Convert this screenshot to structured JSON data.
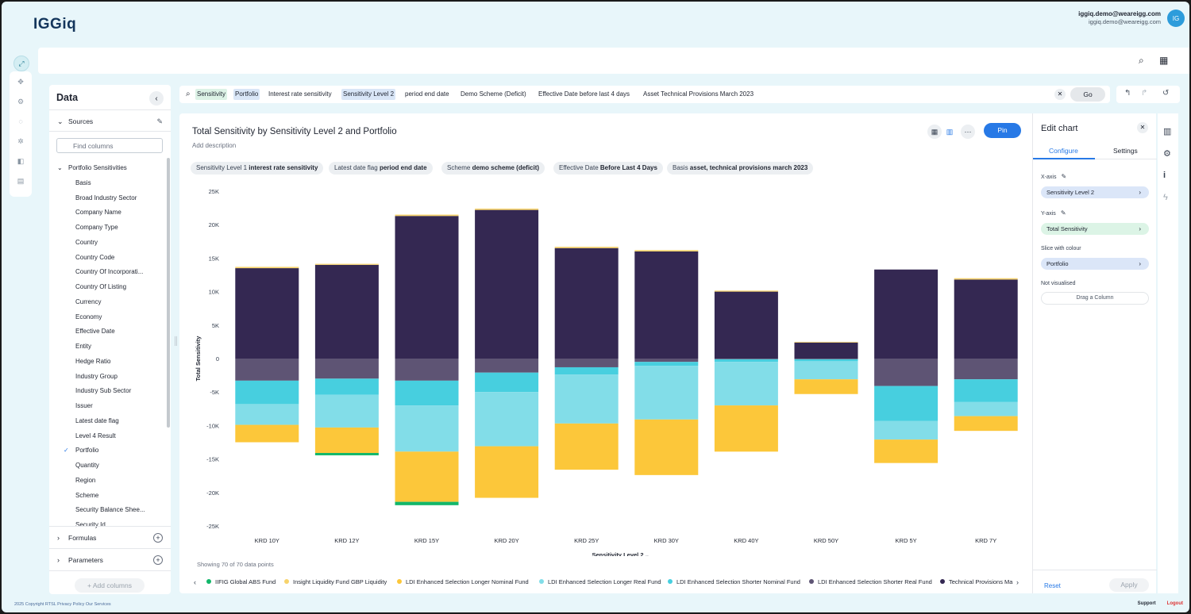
{
  "header": {
    "logo_a": "IGG",
    "logo_b": "iq",
    "user_email": "iggiq.demo@weareigg.com",
    "user_email_sub": "iggiq.demo@weareigg.com",
    "avatar": "IG"
  },
  "data_panel": {
    "title": "Data",
    "collapse": "‹",
    "sources_label": "Sources",
    "search_placeholder": "Find columns",
    "group_label": "Portfolio Sensitivities",
    "items": [
      "Basis",
      "Broad Industry Sector",
      "Company Name",
      "Company Type",
      "Country",
      "Country Code",
      "Country Of Incorporati...",
      "Country Of Listing",
      "Currency",
      "Economy",
      "Effective Date",
      "Entity",
      "Hedge Ratio",
      "Industry Group",
      "Industry Sub Sector",
      "Issuer",
      "Latest date flag",
      "Level 4 Result",
      "Portfolio",
      "Quantity",
      "Region",
      "Scheme",
      "Security Balance Shee...",
      "Security Id"
    ],
    "checked_item": "Portfolio",
    "formulas_label": "Formulas",
    "parameters_label": "Parameters",
    "add_columns": "+ Add columns"
  },
  "query": {
    "tokens": [
      {
        "text": "Sensitivity",
        "style": "green"
      },
      {
        "text": "Portfolio",
        "style": "blue"
      },
      {
        "text": "Interest rate sensitivity",
        "style": "plain"
      },
      {
        "text": "Sensitivity Level 2",
        "style": "blue"
      },
      {
        "text": "period end date",
        "style": "plain"
      },
      {
        "text": "Demo Scheme (Deficit)",
        "style": "plain"
      },
      {
        "text": "Effective Date before last 4 days",
        "style": "plain"
      },
      {
        "text": "Asset Technical Provisions March 2023",
        "style": "plain"
      }
    ],
    "go_label": "Go"
  },
  "chart_card": {
    "title": "Total Sensitivity by Sensitivity Level 2 and Portfolio",
    "description": "Add description",
    "pin_label": "Pin",
    "chips": [
      {
        "key": "Sensitivity Level 1",
        "value": "interest rate sensitivity"
      },
      {
        "key": "Latest date flag",
        "value": "period end date"
      },
      {
        "key": "Scheme",
        "value": "demo scheme (deficit)"
      },
      {
        "key": "Effective Date",
        "value": "Before Last 4 Days"
      },
      {
        "key": "Basis",
        "value": "asset, technical provisions march 2023"
      }
    ],
    "showing": "Showing 70 of 70 data points",
    "legend_arrow_left": "‹",
    "legend_arrow_right": "›"
  },
  "chart_data": {
    "type": "bar",
    "stacked": true,
    "xlabel": "Sensitivity Level 2",
    "ylabel": "Total Sensitivity",
    "ylim": [
      -25000,
      25000
    ],
    "yticks": [
      25000,
      20000,
      15000,
      10000,
      5000,
      0,
      -5000,
      -10000,
      -15000,
      -20000,
      -25000
    ],
    "ytick_labels": [
      "25K",
      "20K",
      "15K",
      "10K",
      "5K",
      "0",
      "-5K",
      "-10K",
      "-15K",
      "-20K",
      "-25K"
    ],
    "categories": [
      "KRD 10Y",
      "KRD 12Y",
      "KRD 15Y",
      "KRD 20Y",
      "KRD 25Y",
      "KRD 30Y",
      "KRD 40Y",
      "KRD 50Y",
      "KRD 5Y",
      "KRD 7Y"
    ],
    "series": [
      {
        "name": "IIFIG Global ABS Fund",
        "color": "#12b76a",
        "values": [
          0,
          -350,
          -500,
          0,
          0,
          0,
          0,
          0,
          0,
          0
        ]
      },
      {
        "name": "Insight Liquidity Fund GBP Liquidity",
        "color": "#f7d36b",
        "values": [
          200,
          150,
          200,
          200,
          200,
          200,
          150,
          100,
          0,
          200
        ]
      },
      {
        "name": "LDI Enhanced Selection Longer Nominal Fund",
        "color": "#fcc73a",
        "values": [
          -2600,
          -3800,
          -7500,
          -7700,
          -6900,
          -8300,
          -6900,
          -2200,
          -3500,
          -2200
        ]
      },
      {
        "name": "LDI Enhanced Selection Longer Real Fund",
        "color": "#82dde8",
        "values": [
          -3100,
          -4900,
          -6900,
          -8100,
          -7300,
          -8000,
          -6500,
          -2700,
          -2800,
          -2100
        ]
      },
      {
        "name": "LDI Enhanced Selection Shorter Nominal Fund",
        "color": "#47cfdf",
        "values": [
          -3500,
          -2400,
          -3700,
          -2900,
          -1100,
          -600,
          -400,
          -300,
          -5200,
          -3400
        ]
      },
      {
        "name": "LDI Enhanced Selection Shorter Real Fund",
        "color": "#5e5474",
        "values": [
          -3300,
          -3000,
          -3300,
          -2100,
          -1300,
          -500,
          -100,
          -100,
          -4100,
          -3100
        ]
      },
      {
        "name": "Technical Provisions Ma",
        "color": "#342852",
        "values": [
          13500,
          14000,
          21300,
          22200,
          16500,
          16000,
          10000,
          2400,
          13300,
          11800
        ]
      }
    ]
  },
  "edit_panel": {
    "title": "Edit chart",
    "tab_configure": "Configure",
    "tab_settings": "Settings",
    "x_axis_label": "X-axis",
    "x_axis_value": "Sensitivity Level 2",
    "y_axis_label": "Y-axis",
    "y_axis_value": "Total Sensitivity",
    "slice_label": "Slice with colour",
    "slice_value": "Portfolio",
    "not_visualised_label": "Not visualised",
    "drag_label": "Drag a Column",
    "reset": "Reset",
    "apply": "Apply"
  },
  "footer": {
    "left": "2025 Copyright RTSL Privacy Policy Our Services",
    "support": "Support",
    "logout": "Logout"
  }
}
